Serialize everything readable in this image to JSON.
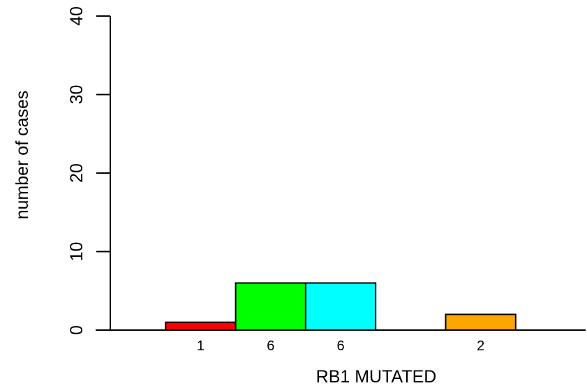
{
  "chart_data": {
    "type": "bar",
    "title": "",
    "xlabel": "RB1 MUTATED",
    "ylabel": "number of cases",
    "ylim": [
      0,
      40
    ],
    "yticks": [
      0,
      10,
      20,
      30,
      40
    ],
    "grid": false,
    "bars": [
      {
        "x0": 1,
        "x1": 2,
        "value": 1,
        "label": "1",
        "color": "#ff0000"
      },
      {
        "x0": 2,
        "x1": 3,
        "value": 6,
        "label": "6",
        "color": "#00ff00"
      },
      {
        "x0": 3,
        "x1": 4,
        "value": 6,
        "label": "6",
        "color": "#00ffff"
      },
      {
        "x0": 5,
        "x1": 6,
        "value": 2,
        "label": "2",
        "color": "#ffa500"
      }
    ],
    "baseline_range": [
      0,
      7
    ]
  }
}
